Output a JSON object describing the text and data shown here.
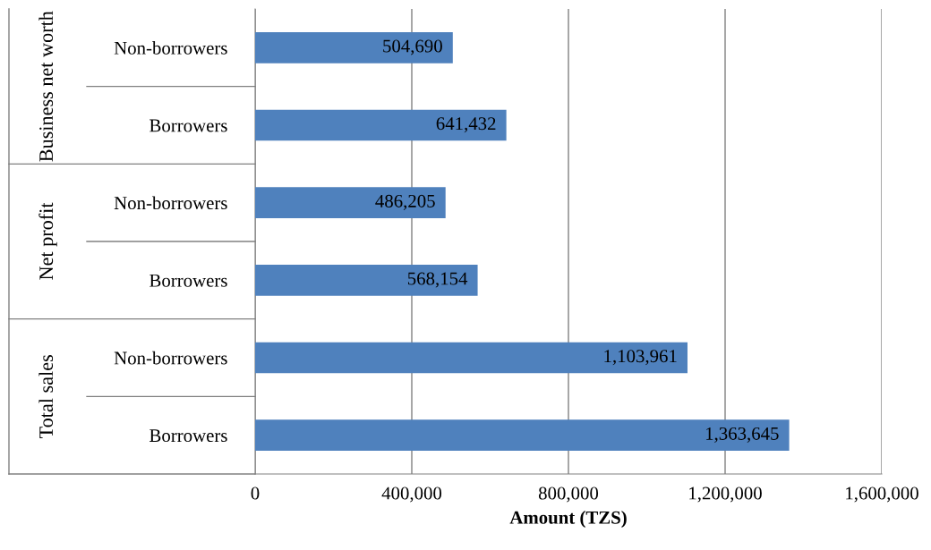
{
  "chart_data": {
    "type": "bar",
    "orientation": "horizontal",
    "categories": [
      "Non-borrowers",
      "Borrowers",
      "Non-borrowers",
      "Borrowers",
      "Non-borrowers",
      "Borrowers"
    ],
    "values": [
      504690,
      641432,
      486205,
      568154,
      1103961,
      1363645
    ],
    "color": "#4f81bd",
    "xlabel": "Amount (TZS)",
    "xlim": [
      0,
      1600000
    ],
    "xticks": [
      0,
      {
        "value": 400000,
        "label": "400,000"
      },
      {
        "value": 800000,
        "label": "800,000"
      },
      {
        "value": 1200000,
        "label": "1,200,000"
      },
      {
        "value": 1600000,
        "label": "1,600,000"
      }
    ],
    "grid": "x",
    "value_labels": [
      "504,690",
      "641,432",
      "486,205",
      "568,154",
      "1,103,961",
      "1,363,645"
    ],
    "annotations": [
      "Business net worth",
      "Net profit",
      "Total sales"
    ]
  }
}
